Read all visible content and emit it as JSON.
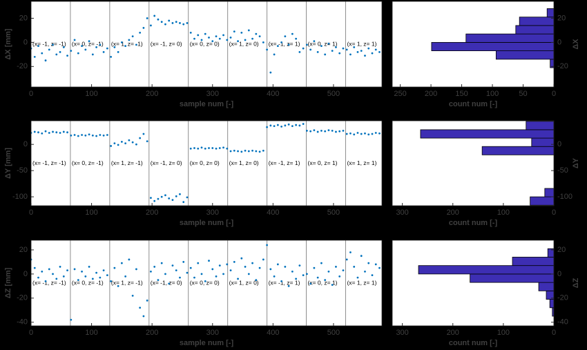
{
  "chart_data": [
    {
      "type": "scatter",
      "xlabel": "sample num [-]",
      "ylabel": "ΔX [mm]",
      "color": "#0072bd",
      "x": [
        0,
        6,
        12,
        18,
        24,
        30,
        36,
        42,
        48,
        54,
        60,
        66,
        72,
        78,
        84,
        90,
        96,
        102,
        108,
        114,
        120,
        126,
        132,
        138,
        144,
        150,
        156,
        162,
        168,
        174,
        180,
        186,
        192,
        198,
        204,
        210,
        216,
        222,
        228,
        234,
        240,
        246,
        252,
        258,
        264,
        270,
        276,
        282,
        288,
        294,
        300,
        306,
        312,
        318,
        324,
        330,
        336,
        342,
        348,
        354,
        360,
        366,
        372,
        378,
        384,
        390,
        396,
        402,
        408,
        414,
        420,
        426,
        432,
        438,
        444,
        450,
        456,
        462,
        468,
        474,
        480,
        486,
        492,
        498,
        504,
        510,
        516,
        522,
        528,
        534,
        540,
        546,
        552,
        558,
        564,
        570,
        576
      ],
      "values": [
        -5,
        -12,
        -3,
        -9,
        -15,
        -6,
        -2,
        -10,
        -8,
        -4,
        -11,
        -7,
        2,
        -9,
        -3,
        -6,
        1,
        -10,
        -4,
        -2,
        -8,
        -5,
        -12,
        -4,
        -8,
        0,
        -3,
        2,
        5,
        -2,
        8,
        12,
        20,
        14,
        22,
        19,
        17,
        15,
        18,
        16,
        17,
        16,
        15,
        16,
        8,
        3,
        6,
        2,
        7,
        4,
        1,
        5,
        3,
        6,
        2,
        4,
        9,
        1,
        8,
        2,
        10,
        3,
        7,
        5,
        0,
        -6,
        -25,
        -10,
        -3,
        0,
        5,
        -2,
        7,
        3,
        -8,
        -5,
        -2,
        -6,
        1,
        -8,
        -3,
        -10,
        -1,
        -7,
        -4,
        -9,
        -5,
        -6,
        -10,
        -4,
        -8,
        -7,
        -11,
        -5,
        -9,
        -6,
        -8
      ],
      "xlim": [
        0,
        580
      ],
      "ylim": [
        -37,
        34
      ],
      "xticks": [
        0,
        100,
        200,
        300,
        400,
        500
      ],
      "yticks": [
        -20,
        0,
        20
      ],
      "vlines": [
        65,
        130,
        195,
        260,
        325,
        390,
        455,
        520
      ],
      "annotations": [
        "(x= -1, z= -1)",
        "(x= 0, z= -1)",
        "(x= 1, z= -1)",
        "(x= -1, z= 0)",
        "(x= 0, z= 0)",
        "(x= 1, z= 0)",
        "(x= -1, z= 1)",
        "(x= 0, z= 1)",
        "(x= 1, z= 1)"
      ]
    },
    {
      "type": "histogram",
      "orientation": "horizontal",
      "xlabel": "count num [-]",
      "ylabel": "ΔX",
      "color": "#3d2eb3",
      "bins": [
        -21,
        -14,
        -7,
        0,
        7,
        14,
        21,
        28
      ],
      "values": [
        6,
        94,
        199,
        143,
        62,
        56,
        11
      ],
      "xlim": [
        263,
        0
      ],
      "ylim": [
        -37,
        34
      ],
      "xticks": [
        250,
        200,
        150,
        100,
        50,
        0
      ],
      "yticks": [
        -20,
        0,
        20
      ]
    },
    {
      "type": "scatter",
      "xlabel": "sample num [-]",
      "ylabel": "ΔY [mm]",
      "color": "#0072bd",
      "x": [
        0,
        6,
        12,
        18,
        24,
        30,
        36,
        42,
        48,
        54,
        60,
        66,
        72,
        78,
        84,
        90,
        96,
        102,
        108,
        114,
        120,
        126,
        132,
        138,
        144,
        150,
        156,
        162,
        168,
        174,
        180,
        186,
        192,
        198,
        204,
        210,
        216,
        222,
        228,
        234,
        240,
        246,
        252,
        258,
        264,
        270,
        276,
        282,
        288,
        294,
        300,
        306,
        312,
        318,
        324,
        330,
        336,
        342,
        348,
        354,
        360,
        366,
        372,
        378,
        384,
        390,
        396,
        402,
        408,
        414,
        420,
        426,
        432,
        438,
        444,
        450,
        456,
        462,
        468,
        474,
        480,
        486,
        492,
        498,
        504,
        510,
        516,
        522,
        528,
        534,
        540,
        546,
        552,
        558,
        564,
        570,
        576
      ],
      "values": [
        22,
        24,
        23,
        21,
        25,
        22,
        24,
        23,
        22,
        24,
        23,
        17,
        18,
        16,
        18,
        17,
        19,
        17,
        16,
        18,
        17,
        18,
        -3,
        2,
        -1,
        5,
        2,
        8,
        4,
        0,
        12,
        20,
        6,
        -102,
        -108,
        -104,
        -100,
        -97,
        -103,
        -106,
        -99,
        -95,
        -110,
        -101,
        -8,
        -7,
        -8,
        -6,
        -8,
        -7,
        -7,
        -8,
        -7,
        -6,
        -8,
        -13,
        -12,
        -13,
        -14,
        -12,
        -13,
        -12,
        -13,
        -14,
        -12,
        33,
        36,
        35,
        37,
        34,
        36,
        38,
        35,
        37,
        36,
        39,
        26,
        25,
        27,
        24,
        26,
        25,
        27,
        26,
        24,
        25,
        26,
        20,
        21,
        19,
        22,
        20,
        21,
        19,
        20,
        22,
        21
      ],
      "xlim": [
        0,
        580
      ],
      "ylim": [
        -117,
        45
      ],
      "xticks": [
        0,
        100,
        200,
        300,
        400,
        500
      ],
      "yticks": [
        -100,
        -50,
        0
      ],
      "vlines": [
        65,
        130,
        195,
        260,
        325,
        390,
        455,
        520
      ],
      "annotations": [
        "(x= -1, z= -1)",
        "(x= 0, z= -1)",
        "(x= 1, z= -1)",
        "(x= -1, z= 0)",
        "(x= 0, z= 0)",
        "(x= 1, z= 0)",
        "(x= -1, z= 1)",
        "(x= 0, z= 1)",
        "(x= 1, z= 1)"
      ]
    },
    {
      "type": "histogram",
      "orientation": "horizontal",
      "xlabel": "count num [-]",
      "ylabel": "ΔY",
      "color": "#3d2eb3",
      "bins": [
        -116,
        -100,
        -84,
        -68,
        -52,
        -36,
        -20,
        -4,
        12,
        28,
        44
      ],
      "values": [
        47,
        18,
        0,
        0,
        0,
        0,
        142,
        44,
        264,
        55
      ],
      "xlim": [
        320,
        0
      ],
      "ylim": [
        -117,
        45
      ],
      "xticks": [
        300,
        200,
        100,
        0
      ],
      "yticks": [
        -100,
        -50,
        0
      ]
    },
    {
      "type": "scatter",
      "xlabel": "sample num [-]",
      "ylabel": "ΔZ [mm]",
      "color": "#0072bd",
      "x": [
        0,
        6,
        12,
        18,
        24,
        30,
        36,
        42,
        48,
        54,
        60,
        66,
        72,
        78,
        84,
        90,
        96,
        102,
        108,
        114,
        120,
        126,
        132,
        138,
        144,
        150,
        156,
        162,
        168,
        174,
        180,
        186,
        192,
        198,
        204,
        210,
        216,
        222,
        228,
        234,
        240,
        246,
        252,
        258,
        264,
        270,
        276,
        282,
        288,
        294,
        300,
        306,
        312,
        318,
        324,
        330,
        336,
        342,
        348,
        354,
        360,
        366,
        372,
        378,
        384,
        390,
        396,
        402,
        408,
        414,
        420,
        426,
        432,
        438,
        444,
        450,
        456,
        462,
        468,
        474,
        480,
        486,
        492,
        498,
        504,
        510,
        516,
        522,
        528,
        534,
        540,
        546,
        552,
        558,
        564,
        570,
        576
      ],
      "values": [
        12,
        5,
        -3,
        2,
        -6,
        4,
        0,
        -4,
        6,
        -2,
        3,
        -38,
        4,
        -5,
        2,
        -2,
        6,
        -4,
        1,
        -3,
        3,
        -1,
        -6,
        5,
        -10,
        9,
        -2,
        12,
        -18,
        4,
        -28,
        -35,
        -22,
        2,
        6,
        -5,
        9,
        0,
        -8,
        7,
        3,
        -3,
        10,
        1,
        5,
        -3,
        9,
        0,
        -6,
        11,
        4,
        -2,
        7,
        0,
        8,
        3,
        10,
        -4,
        13,
        6,
        0,
        9,
        -5,
        5,
        12,
        24,
        4,
        -2,
        8,
        -6,
        6,
        -10,
        2,
        -4,
        7,
        -1,
        0,
        -8,
        5,
        -3,
        9,
        -5,
        2,
        -9,
        6,
        -2,
        3,
        12,
        18,
        6,
        -3,
        15,
        2,
        9,
        -1,
        8,
        5
      ],
      "xlim": [
        0,
        580
      ],
      "ylim": [
        -43,
        28
      ],
      "xticks": [
        0,
        100,
        200,
        300,
        400,
        500
      ],
      "yticks": [
        -40,
        -20,
        0,
        20
      ],
      "vlines": [
        65,
        130,
        195,
        260,
        325,
        390,
        455,
        520
      ],
      "annotations": [
        "(x= -1, z= -1)",
        "(x= 0, z= -1)",
        "(x= 1, z= -1)",
        "(x= -1, z= 0)",
        "(x= 0, z= 0)",
        "(x= 1, z= 0)",
        "(x= -1, z= 1)",
        "(x= 0, z= 1)",
        "(x= 1, z= 1)"
      ]
    },
    {
      "type": "histogram",
      "orientation": "horizontal",
      "xlabel": "count num [-]",
      "ylabel": "ΔZ",
      "color": "#3d2eb3",
      "bins": [
        -35,
        -28,
        -21,
        -14,
        -7,
        0,
        7,
        14,
        21
      ],
      "values": [
        3,
        8,
        15,
        30,
        166,
        268,
        82,
        12
      ],
      "xlim": [
        320,
        0
      ],
      "ylim": [
        -43,
        28
      ],
      "xticks": [
        300,
        200,
        100,
        0
      ],
      "yticks": [
        -40,
        -20,
        0,
        20
      ]
    }
  ]
}
